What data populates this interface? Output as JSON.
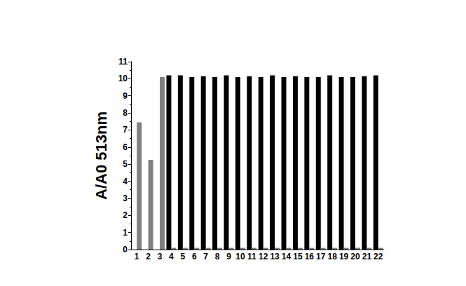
{
  "chart_data": {
    "type": "bar",
    "y_label": "A/A0 513nm",
    "categories": [
      "1",
      "2",
      "3",
      "4",
      "5",
      "6",
      "7",
      "8",
      "9",
      "10",
      "11",
      "12",
      "13",
      "14",
      "15",
      "16",
      "17",
      "18",
      "19",
      "20",
      "21",
      "22"
    ],
    "series": [
      {
        "color": "#000000",
        "values": [
          null,
          null,
          null,
          10.2,
          10.2,
          10.1,
          10.15,
          10.1,
          10.2,
          10.1,
          10.15,
          10.1,
          10.2,
          10.1,
          10.15,
          10.1,
          10.1,
          10.2,
          10.1,
          10.1,
          10.15,
          10.2
        ]
      },
      {
        "color": "#808080",
        "values": [
          7.45,
          5.25,
          10.1,
          0.1,
          0.1,
          0.1,
          0.1,
          0.1,
          0.1,
          0.1,
          0.1,
          0.1,
          0.1,
          0.1,
          0.1,
          0.1,
          0.1,
          0.1,
          0.1,
          0.1,
          0.1,
          0.1
        ]
      }
    ],
    "ylim": [
      0,
      11
    ],
    "yticks": [
      0,
      1,
      2,
      3,
      4,
      5,
      6,
      7,
      8,
      9,
      10,
      11
    ],
    "grid": false
  }
}
